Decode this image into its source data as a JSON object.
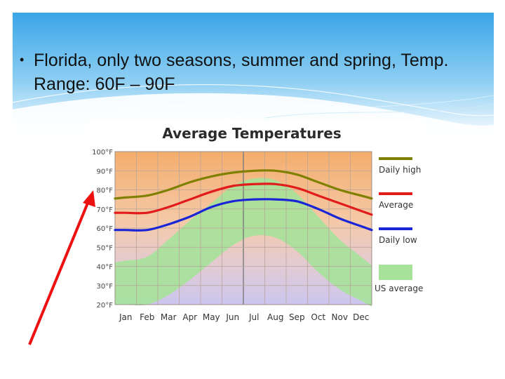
{
  "slide": {
    "bullet_marker": "•",
    "bullet_text": "Florida, only two seasons,  summer and spring, Temp.  Range: 60F – 90F",
    "accent_color": "#3fa9e8",
    "arrow_color": "#ee1111"
  },
  "chart_data": {
    "type": "line",
    "title": "Average Temperatures",
    "categories": [
      "Jan",
      "Feb",
      "Mar",
      "Apr",
      "May",
      "Jun",
      "Jul",
      "Aug",
      "Sep",
      "Oct",
      "Nov",
      "Dec"
    ],
    "y_ticks": [
      "100°F",
      "90°F",
      "80°F",
      "70°F",
      "60°F",
      "50°F",
      "40°F",
      "30°F",
      "20°F"
    ],
    "ylim": [
      20,
      100
    ],
    "xlabel": "",
    "ylabel": "",
    "grid": true,
    "legend_position": "right",
    "series": [
      {
        "name": "Daily high",
        "color": "#808000",
        "values": [
          76,
          77,
          80,
          84,
          87,
          89,
          90,
          90,
          88,
          84,
          80,
          77
        ]
      },
      {
        "name": "Average",
        "color": "#e21b1b",
        "values": [
          68,
          68,
          71,
          75,
          79,
          82,
          83,
          83,
          81,
          77,
          73,
          69
        ]
      },
      {
        "name": "Daily low",
        "color": "#1a25d6",
        "values": [
          59,
          59,
          62,
          66,
          71,
          74,
          75,
          75,
          74,
          70,
          65,
          61
        ]
      }
    ],
    "band": {
      "name": "US average",
      "color": "#a6e29a",
      "low": [
        20,
        20,
        25,
        33,
        42,
        51,
        56,
        55,
        48,
        37,
        28,
        22
      ],
      "high": [
        43,
        45,
        54,
        64,
        73,
        82,
        86,
        85,
        78,
        66,
        54,
        45
      ]
    }
  }
}
